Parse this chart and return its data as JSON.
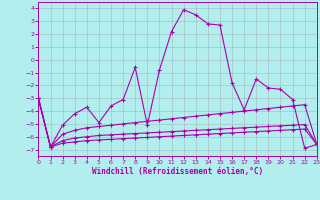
{
  "xlabel": "Windchill (Refroidissement éolien,°C)",
  "bg_color": "#b2eeee",
  "grid_color": "#999999",
  "line_color": "#aa00aa",
  "xlim": [
    0,
    23
  ],
  "ylim": [
    -7.5,
    4.5
  ],
  "xticks": [
    0,
    1,
    2,
    3,
    4,
    5,
    6,
    7,
    8,
    9,
    10,
    11,
    12,
    13,
    14,
    15,
    16,
    17,
    18,
    19,
    20,
    21,
    22,
    23
  ],
  "yticks": [
    4,
    3,
    2,
    1,
    0,
    -1,
    -2,
    -3,
    -4,
    -5,
    -6,
    -7
  ],
  "line1_x": [
    0,
    1,
    2,
    3,
    4,
    5,
    6,
    7,
    8,
    9,
    10,
    11,
    12,
    13,
    14,
    15,
    16,
    17,
    18,
    19,
    20,
    21,
    22,
    23
  ],
  "line1_y": [
    -3.0,
    -6.8,
    -5.1,
    -4.2,
    -3.7,
    -4.9,
    -3.6,
    -3.1,
    -0.6,
    -5.1,
    -0.8,
    2.2,
    3.9,
    3.5,
    2.8,
    2.7,
    -1.8,
    -3.9,
    -1.5,
    -2.2,
    -2.3,
    -3.1,
    -6.9,
    -6.6
  ],
  "line2_x": [
    0,
    1,
    2,
    3,
    4,
    5,
    6,
    7,
    8,
    9,
    10,
    11,
    12,
    13,
    14,
    15,
    16,
    17,
    18,
    19,
    20,
    21,
    22,
    23
  ],
  "line2_y": [
    -3.0,
    -6.8,
    -5.8,
    -5.5,
    -5.3,
    -5.2,
    -5.1,
    -5.0,
    -4.9,
    -4.8,
    -4.7,
    -4.6,
    -4.5,
    -4.4,
    -4.3,
    -4.2,
    -4.1,
    -4.0,
    -3.9,
    -3.8,
    -3.7,
    -3.6,
    -3.5,
    -6.6
  ],
  "line3_x": [
    0,
    1,
    2,
    3,
    4,
    5,
    6,
    7,
    8,
    9,
    10,
    11,
    12,
    13,
    14,
    15,
    16,
    17,
    18,
    19,
    20,
    21,
    22,
    23
  ],
  "line3_y": [
    -3.0,
    -6.8,
    -6.3,
    -6.1,
    -6.0,
    -5.9,
    -5.85,
    -5.8,
    -5.75,
    -5.7,
    -5.65,
    -5.6,
    -5.55,
    -5.5,
    -5.45,
    -5.4,
    -5.35,
    -5.3,
    -5.25,
    -5.2,
    -5.15,
    -5.1,
    -5.05,
    -6.6
  ],
  "line4_x": [
    0,
    1,
    2,
    3,
    4,
    5,
    6,
    7,
    8,
    9,
    10,
    11,
    12,
    13,
    14,
    15,
    16,
    17,
    18,
    19,
    20,
    21,
    22,
    23
  ],
  "line4_y": [
    -3.0,
    -6.8,
    -6.5,
    -6.4,
    -6.3,
    -6.25,
    -6.2,
    -6.15,
    -6.1,
    -6.05,
    -6.0,
    -5.95,
    -5.9,
    -5.85,
    -5.8,
    -5.75,
    -5.7,
    -5.65,
    -5.6,
    -5.55,
    -5.5,
    -5.45,
    -5.4,
    -6.6
  ]
}
